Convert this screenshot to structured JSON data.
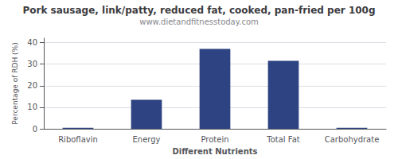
{
  "chart_data": {
    "type": "bar",
    "title": "Pork sausage, link/patty, reduced fat, cooked, pan-fried per 100g",
    "subtitle": "www.dietandfitnesstoday.com",
    "categories": [
      "Riboflavin",
      "Energy",
      "Protein",
      "Total Fat",
      "Carbohydrate"
    ],
    "values": [
      0.5,
      13.5,
      37.0,
      31.5,
      0.5
    ],
    "color": "#2e4482",
    "xlabel": "Different Nutrients",
    "ylabel": "Percentage of RDH (%)",
    "ylim": [
      0,
      42
    ],
    "yticks": [
      0,
      10,
      20,
      30,
      40
    ],
    "grid": true
  }
}
